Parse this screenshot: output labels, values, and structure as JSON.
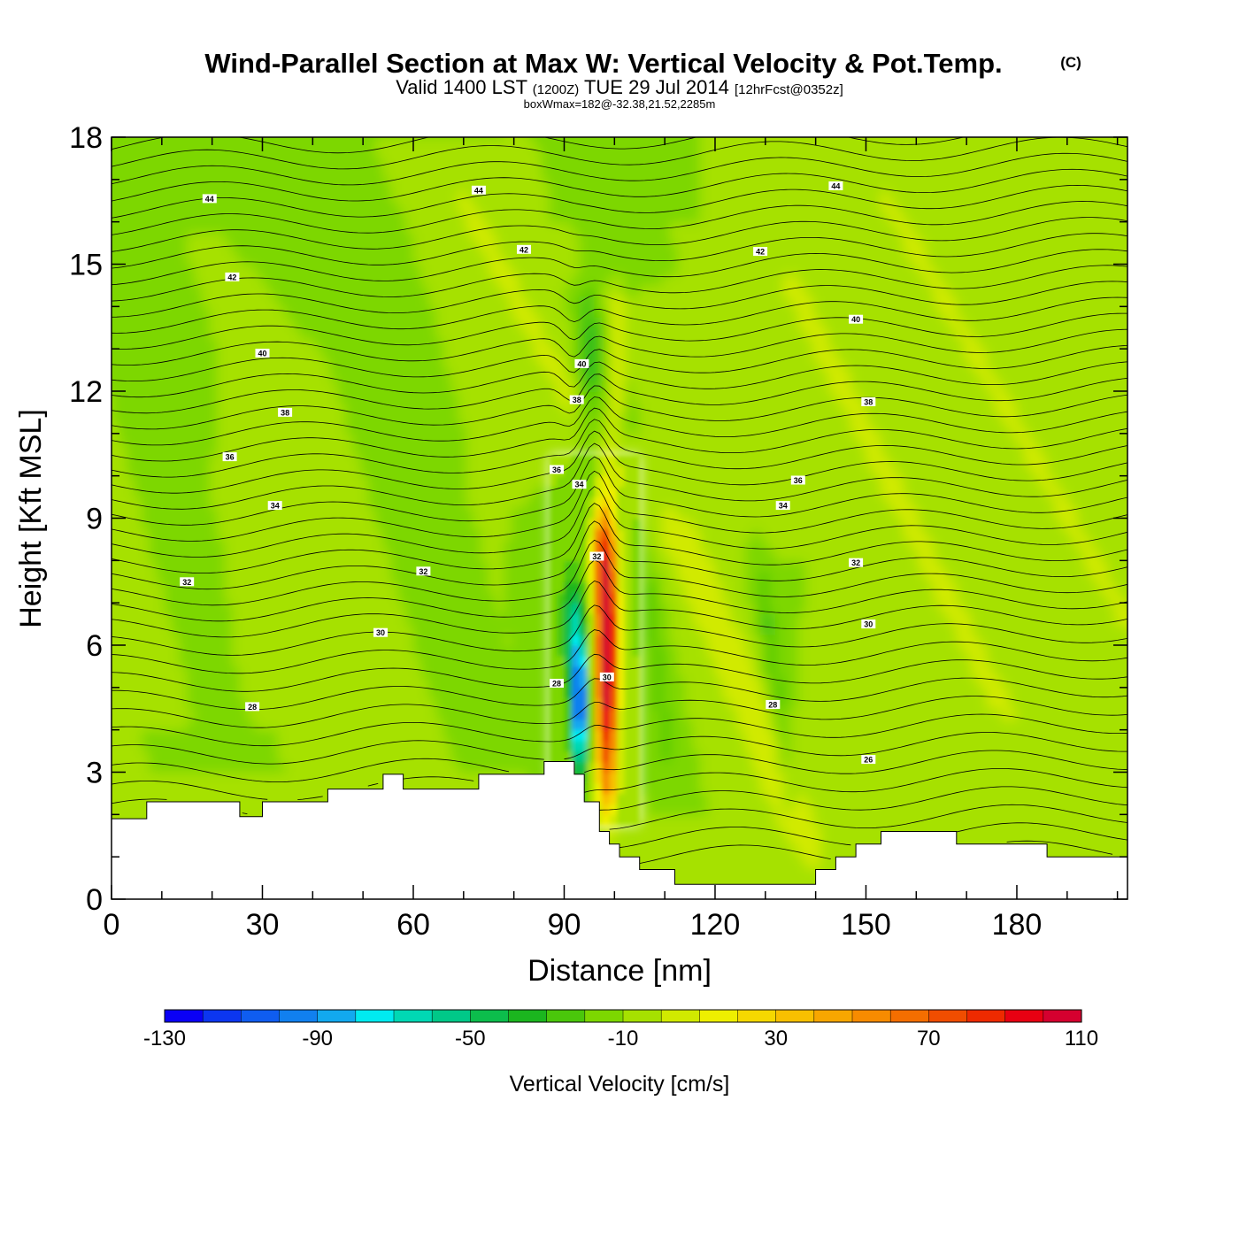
{
  "chart_data": {
    "type": "heatmap",
    "title": "Wind-Parallel Section at Max W: Vertical Velocity & Pot.Temp.",
    "copyright": "(C)",
    "subtitle": {
      "prefix": "Valid 1400 LST",
      "utc": "(1200Z)",
      "date": "TUE 29 Jul 2014",
      "forecast": "[12hrFcst@0352z]"
    },
    "box_info": "boxWmax=182@-32.38,21.52,2285m",
    "xlabel": "Distance [nm]",
    "ylabel": "Height [Kft MSL]",
    "xlim": [
      0,
      202
    ],
    "ylim": [
      0,
      18
    ],
    "x_ticks": [
      "0",
      "30",
      "60",
      "90",
      "120",
      "150",
      "180"
    ],
    "y_ticks": [
      "0",
      "3",
      "6",
      "9",
      "12",
      "15",
      "18"
    ],
    "colorbar": {
      "label": "Vertical Velocity [cm/s]",
      "levels": [
        -130,
        110
      ],
      "tick_labels": [
        "-130",
        "-90",
        "-50",
        "-10",
        "30",
        "70",
        "110"
      ],
      "colors": [
        "#0a00f5",
        "#0c36f0",
        "#0f5df0",
        "#1180ef",
        "#12a9ef",
        "#00ebf0",
        "#00d8b4",
        "#00c888",
        "#0cbd4c",
        "#1bb61f",
        "#4ac70b",
        "#7dd700",
        "#a6e100",
        "#d1ea00",
        "#eeef00",
        "#f5d800",
        "#f8c000",
        "#f7a600",
        "#f78b00",
        "#f46e00",
        "#f04d00",
        "#ee2a00",
        "#e80012",
        "#d5002f"
      ]
    },
    "terrain_kft": [
      [
        0,
        1.9
      ],
      [
        7,
        1.9
      ],
      [
        7,
        2.3
      ],
      [
        25.5,
        2.3
      ],
      [
        25.5,
        1.95
      ],
      [
        30,
        1.95
      ],
      [
        30,
        2.3
      ],
      [
        43,
        2.3
      ],
      [
        43,
        2.6
      ],
      [
        54,
        2.6
      ],
      [
        54,
        2.95
      ],
      [
        58,
        2.95
      ],
      [
        58,
        2.6
      ],
      [
        73,
        2.6
      ],
      [
        73,
        2.95
      ],
      [
        86,
        2.95
      ],
      [
        86,
        3.25
      ],
      [
        92,
        3.25
      ],
      [
        92,
        2.95
      ],
      [
        94,
        2.95
      ],
      [
        94,
        2.3
      ],
      [
        97,
        2.3
      ],
      [
        97,
        1.6
      ],
      [
        99,
        1.6
      ],
      [
        99,
        1.3
      ],
      [
        101,
        1.3
      ],
      [
        101,
        1.0
      ],
      [
        105,
        1.0
      ],
      [
        105,
        0.7
      ],
      [
        112,
        0.7
      ],
      [
        112,
        0.35
      ],
      [
        140,
        0.35
      ],
      [
        140,
        0.7
      ],
      [
        144,
        0.7
      ],
      [
        144,
        1.0
      ],
      [
        148,
        1.0
      ],
      [
        148,
        1.3
      ],
      [
        153,
        1.3
      ],
      [
        153,
        1.6
      ],
      [
        168,
        1.6
      ],
      [
        168,
        1.3
      ],
      [
        186,
        1.3
      ],
      [
        186,
        1.0
      ],
      [
        202,
        1.0
      ]
    ],
    "isentrope_labels": [
      {
        "text": "44",
        "x": 19.5,
        "y": 16.55
      },
      {
        "text": "44",
        "x": 73,
        "y": 16.75
      },
      {
        "text": "44",
        "x": 144,
        "y": 16.85
      },
      {
        "text": "42",
        "x": 24,
        "y": 14.7
      },
      {
        "text": "42",
        "x": 82,
        "y": 15.35
      },
      {
        "text": "42",
        "x": 129,
        "y": 15.3
      },
      {
        "text": "40",
        "x": 30,
        "y": 12.9
      },
      {
        "text": "40",
        "x": 93.5,
        "y": 12.65
      },
      {
        "text": "40",
        "x": 148,
        "y": 13.7
      },
      {
        "text": "38",
        "x": 34.5,
        "y": 11.5
      },
      {
        "text": "38",
        "x": 92.5,
        "y": 11.8
      },
      {
        "text": "38",
        "x": 150.5,
        "y": 11.75
      },
      {
        "text": "36",
        "x": 23.5,
        "y": 10.45
      },
      {
        "text": "36",
        "x": 88.5,
        "y": 10.15
      },
      {
        "text": "36",
        "x": 136.5,
        "y": 9.9
      },
      {
        "text": "34",
        "x": 32.5,
        "y": 9.3
      },
      {
        "text": "34",
        "x": 93,
        "y": 9.8
      },
      {
        "text": "34",
        "x": 133.5,
        "y": 9.3
      },
      {
        "text": "32",
        "x": 15,
        "y": 7.5
      },
      {
        "text": "32",
        "x": 62,
        "y": 7.75
      },
      {
        "text": "32",
        "x": 96.5,
        "y": 8.1
      },
      {
        "text": "32",
        "x": 148,
        "y": 7.95
      },
      {
        "text": "30",
        "x": 53.5,
        "y": 6.3
      },
      {
        "text": "30",
        "x": 98.5,
        "y": 5.25
      },
      {
        "text": "30",
        "x": 150.5,
        "y": 6.5
      },
      {
        "text": "28",
        "x": 28,
        "y": 4.55
      },
      {
        "text": "28",
        "x": 88.5,
        "y": 5.1
      },
      {
        "text": "28",
        "x": 131.5,
        "y": 4.6
      },
      {
        "text": "26",
        "x": 150.5,
        "y": 3.3
      }
    ]
  }
}
